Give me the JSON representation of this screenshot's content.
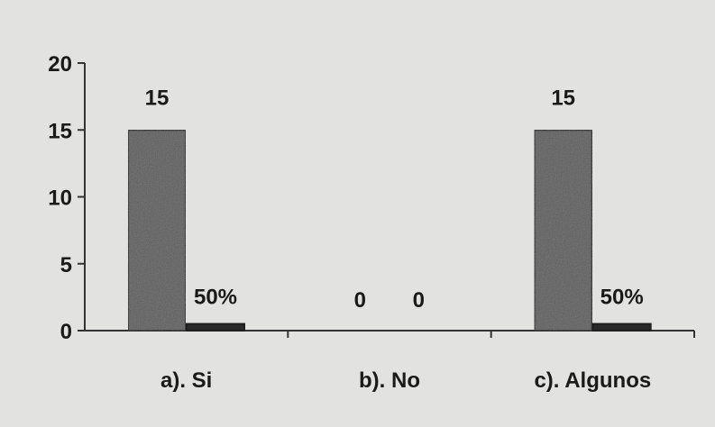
{
  "chart_data": {
    "type": "bar",
    "categories": [
      "a). Si",
      "b). No",
      "c). Algunos"
    ],
    "series": [
      {
        "values": [
          15,
          0,
          15
        ],
        "labels": [
          "15",
          "0",
          "15"
        ],
        "color": "#5e5e5e"
      },
      {
        "values": [
          0.5,
          0,
          0.5
        ],
        "labels": [
          "50%",
          "0",
          "50%"
        ],
        "color": "#2a2a2a"
      }
    ],
    "yticks": [
      "0",
      "5",
      "10",
      "15",
      "20"
    ],
    "ylim": [
      0,
      20
    ],
    "title": "",
    "xlabel": "",
    "ylabel": "",
    "grid": false,
    "legend": false
  }
}
